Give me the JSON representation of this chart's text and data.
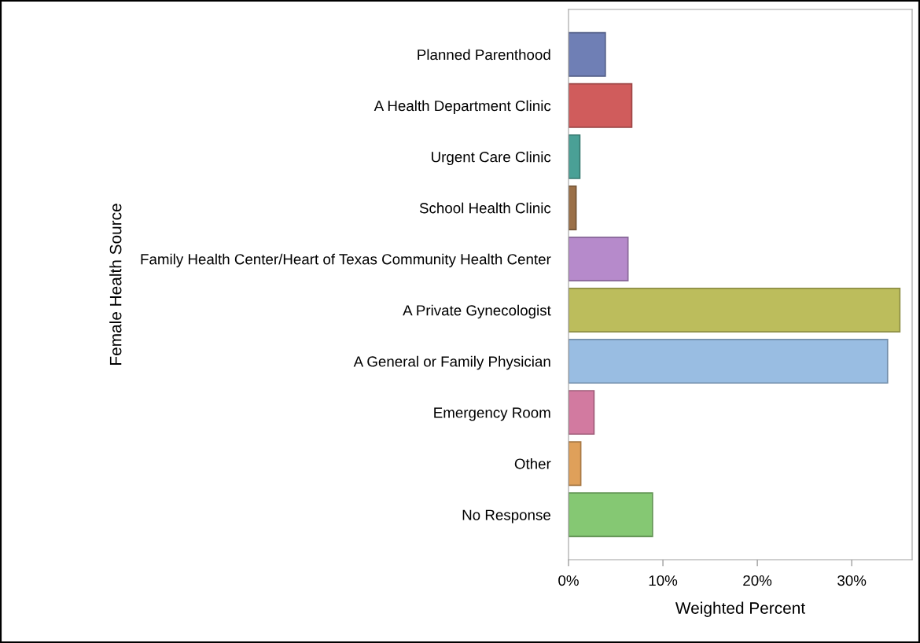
{
  "chart_data": {
    "type": "bar",
    "orientation": "horizontal",
    "xlabel": "Weighted Percent",
    "ylabel": "Female Health Source",
    "categories": [
      "Planned Parenthood",
      "A Health Department Clinic",
      "Urgent Care Clinic",
      "School Health Clinic",
      "Family Health Center/Heart of Texas Community Health Center",
      "A Private Gynecologist",
      "A General or Family Physician",
      "Emergency Room",
      "Other",
      "No Response"
    ],
    "values": [
      3.9,
      6.7,
      1.2,
      0.8,
      6.3,
      35.1,
      33.8,
      2.7,
      1.3,
      8.9
    ],
    "colors": [
      "#6f7fb5",
      "#d05c5c",
      "#4aa096",
      "#9b7048",
      "#b68acb",
      "#bcbd5c",
      "#99bde2",
      "#d27aa0",
      "#dfa05a",
      "#85c873"
    ],
    "xlim": [
      0,
      36.4
    ],
    "xticks": [
      {
        "value": 0,
        "label": "0%"
      },
      {
        "value": 10,
        "label": "10%"
      },
      {
        "value": 20,
        "label": "20%"
      },
      {
        "value": 30,
        "label": "30%"
      }
    ],
    "grid": false,
    "legend": false
  }
}
